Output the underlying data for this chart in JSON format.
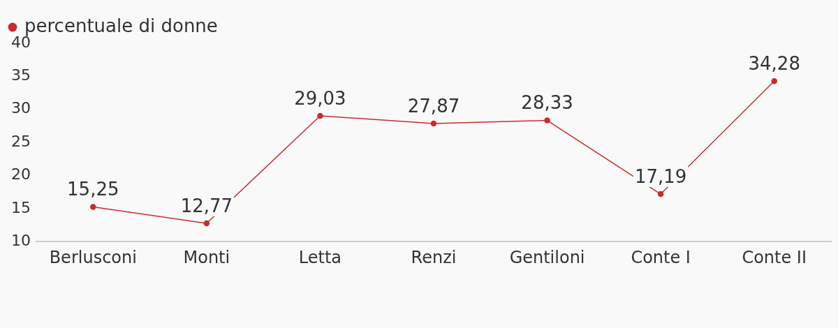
{
  "chart_data": {
    "type": "line",
    "categories": [
      "Berlusconi",
      "Monti",
      "Letta",
      "Renzi",
      "Gentiloni",
      "Conte I",
      "Conte II"
    ],
    "series": [
      {
        "name": "percentuale di donne",
        "color": "#cc2a2f",
        "values": [
          15.25,
          12.77,
          29.03,
          27.87,
          28.33,
          17.19,
          34.28
        ],
        "value_labels": [
          "15,25",
          "12,77",
          "29,03",
          "27,87",
          "28,33",
          "17,19",
          "34,28"
        ]
      }
    ],
    "ylim": [
      10,
      40
    ],
    "yticks": [
      10,
      15,
      20,
      25,
      30,
      35,
      40
    ],
    "grid": false,
    "legend": "top left",
    "marker": "circle",
    "line_style": "solid"
  }
}
